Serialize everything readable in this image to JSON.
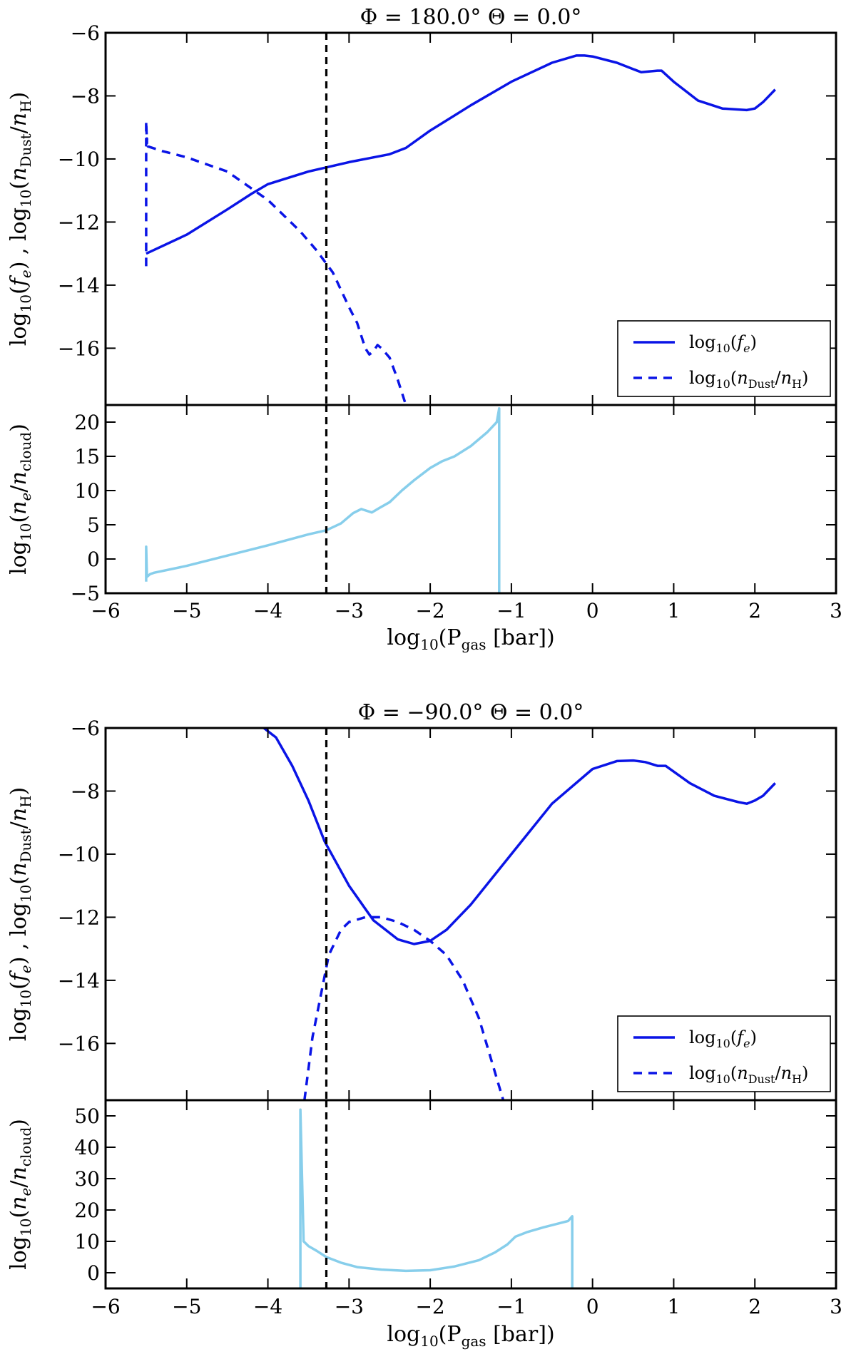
{
  "colors": {
    "fe": "#0a14e6",
    "dust": "#0a14e6",
    "ne": "#87ceeb",
    "vline": "#000000",
    "axes": "#000000"
  },
  "chart_data": [
    {
      "type": "line",
      "title": "Φ = 180.0° Θ = 0.0°",
      "xlabel": "log10(Pgas [bar])",
      "xlim": [
        -6,
        3
      ],
      "xticks": [
        -6,
        -5,
        -4,
        -3,
        -2,
        -1,
        0,
        1,
        2,
        3
      ],
      "xtick_labels": [
        "−6",
        "−5",
        "−4",
        "−3",
        "−2",
        "−1",
        "0",
        "1",
        "2",
        "3"
      ],
      "vline_x": -3.28,
      "top": {
        "ylabel": "log10(fe) , log10(nDust/nH)",
        "ylim": [
          -17.8,
          -6
        ],
        "yticks": [
          -6,
          -8,
          -10,
          -12,
          -14,
          -16
        ],
        "ytick_labels": [
          "−6",
          "−8",
          "−10",
          "−12",
          "−14",
          "−16"
        ],
        "legend_position": "lower-right",
        "series": [
          {
            "name": "log10(fe)",
            "style": "solid",
            "x": [
              -5.5,
              -5.0,
              -4.5,
              -4.2,
              -4.0,
              -3.5,
              -3.0,
              -2.5,
              -2.3,
              -2.0,
              -1.5,
              -1.0,
              -0.5,
              -0.2,
              -0.1,
              0.0,
              0.3,
              0.6,
              0.8,
              0.85,
              1.0,
              1.3,
              1.6,
              1.9,
              2.0,
              2.1,
              2.25
            ],
            "y": [
              -13.0,
              -12.4,
              -11.6,
              -11.1,
              -10.8,
              -10.4,
              -10.1,
              -9.85,
              -9.65,
              -9.1,
              -8.3,
              -7.55,
              -6.95,
              -6.72,
              -6.72,
              -6.75,
              -6.95,
              -7.25,
              -7.2,
              -7.2,
              -7.55,
              -8.15,
              -8.4,
              -8.45,
              -8.4,
              -8.2,
              -7.8
            ]
          },
          {
            "name": "log10(nDust/nH)",
            "style": "dashed",
            "x": [
              -5.5,
              -5.5,
              -5.49,
              -5.49,
              -5.48,
              -5.3,
              -5.0,
              -4.5,
              -4.0,
              -3.6,
              -3.4,
              -3.2,
              -3.0,
              -2.9,
              -2.8,
              -2.75,
              -2.7,
              -2.65,
              -2.6,
              -2.5,
              -2.4,
              -2.3
            ],
            "y": [
              -13.4,
              -8.8,
              -9.5,
              -9.35,
              -9.6,
              -9.75,
              -9.95,
              -10.4,
              -11.3,
              -12.3,
              -12.9,
              -13.6,
              -14.7,
              -15.2,
              -16.0,
              -16.2,
              -16.1,
              -15.9,
              -16.0,
              -16.3,
              -17.0,
              -17.8
            ]
          }
        ]
      },
      "bottom": {
        "ylabel": "log10(ne/ncloud)",
        "ylim": [
          -5,
          22.5
        ],
        "yticks": [
          -5,
          0,
          5,
          10,
          15,
          20
        ],
        "ytick_labels": [
          "−5",
          "0",
          "5",
          "10",
          "15",
          "20"
        ],
        "series": [
          {
            "name": "log10(ne/ncloud)",
            "style": "solid",
            "x": [
              -5.5,
              -5.5,
              -5.49,
              -5.45,
              -5.4,
              -5.0,
              -4.5,
              -4.0,
              -3.5,
              -3.28,
              -3.1,
              -2.95,
              -2.85,
              -2.72,
              -2.62,
              -2.5,
              -2.35,
              -2.2,
              -2.0,
              -1.85,
              -1.7,
              -1.5,
              -1.3,
              -1.18,
              -1.15,
              -1.15
            ],
            "y": [
              -3.3,
              1.8,
              -2.6,
              -2.2,
              -2.0,
              -1.0,
              0.5,
              2.0,
              3.6,
              4.2,
              5.2,
              6.7,
              7.3,
              6.8,
              7.5,
              8.3,
              10.0,
              11.5,
              13.3,
              14.3,
              15.0,
              16.5,
              18.5,
              20.0,
              22.0,
              -5.0
            ]
          }
        ]
      }
    },
    {
      "type": "line",
      "title": "Φ = −90.0° Θ = 0.0°",
      "xlabel": "log10(Pgas [bar])",
      "xlim": [
        -6,
        3
      ],
      "xticks": [
        -6,
        -5,
        -4,
        -3,
        -2,
        -1,
        0,
        1,
        2,
        3
      ],
      "xtick_labels": [
        "−6",
        "−5",
        "−4",
        "−3",
        "−2",
        "−1",
        "0",
        "1",
        "2",
        "3"
      ],
      "vline_x": -3.28,
      "top": {
        "ylabel": "log10(fe) , log10(nDust/nH)",
        "ylim": [
          -17.8,
          -6
        ],
        "yticks": [
          -6,
          -8,
          -10,
          -12,
          -14,
          -16
        ],
        "ytick_labels": [
          "−6",
          "−8",
          "−10",
          "−12",
          "−14",
          "−16"
        ],
        "legend_position": "lower-right",
        "series": [
          {
            "name": "log10(fe)",
            "style": "solid",
            "x": [
              -4.05,
              -3.9,
              -3.7,
              -3.5,
              -3.3,
              -3.0,
              -2.7,
              -2.4,
              -2.2,
              -2.0,
              -1.8,
              -1.5,
              -1.0,
              -0.5,
              0.0,
              0.3,
              0.5,
              0.65,
              0.8,
              0.9,
              1.2,
              1.5,
              1.8,
              1.9,
              2.0,
              2.1,
              2.25
            ],
            "y": [
              -6.0,
              -6.3,
              -7.2,
              -8.3,
              -9.6,
              -11.0,
              -12.1,
              -12.7,
              -12.85,
              -12.75,
              -12.4,
              -11.6,
              -10.0,
              -8.4,
              -7.3,
              -7.05,
              -7.03,
              -7.08,
              -7.2,
              -7.2,
              -7.75,
              -8.15,
              -8.35,
              -8.4,
              -8.3,
              -8.15,
              -7.75
            ]
          },
          {
            "name": "log10(nDust/nH)",
            "style": "dashed",
            "x": [
              -3.55,
              -3.45,
              -3.35,
              -3.25,
              -3.1,
              -3.0,
              -2.8,
              -2.6,
              -2.4,
              -2.2,
              -2.0,
              -1.8,
              -1.6,
              -1.4,
              -1.25,
              -1.1
            ],
            "y": [
              -17.8,
              -15.8,
              -14.5,
              -13.2,
              -12.4,
              -12.15,
              -12.0,
              -12.0,
              -12.15,
              -12.4,
              -12.75,
              -13.2,
              -14.0,
              -15.2,
              -16.5,
              -17.8
            ]
          }
        ]
      },
      "bottom": {
        "ylabel": "log10(ne/ncloud)",
        "ylim": [
          -5,
          55
        ],
        "yticks": [
          0,
          10,
          20,
          30,
          40,
          50
        ],
        "ytick_labels": [
          "0",
          "10",
          "20",
          "30",
          "40",
          "50"
        ],
        "series": [
          {
            "name": "log10(ne/ncloud)",
            "style": "solid",
            "x": [
              -3.6,
              -3.6,
              -3.56,
              -3.52,
              -3.5,
              -3.4,
              -3.28,
              -3.1,
              -2.9,
              -2.6,
              -2.3,
              -2.0,
              -1.7,
              -1.4,
              -1.2,
              -1.05,
              -0.95,
              -0.8,
              -0.6,
              -0.45,
              -0.3,
              -0.25,
              -0.25
            ],
            "y": [
              -5.0,
              52.0,
              10.0,
              9.0,
              8.5,
              7.0,
              5.0,
              3.2,
              1.8,
              1.0,
              0.6,
              0.8,
              2.0,
              4.0,
              6.5,
              9.0,
              11.5,
              13.0,
              14.5,
              15.5,
              16.5,
              18.0,
              -5.0
            ]
          }
        ]
      }
    }
  ]
}
